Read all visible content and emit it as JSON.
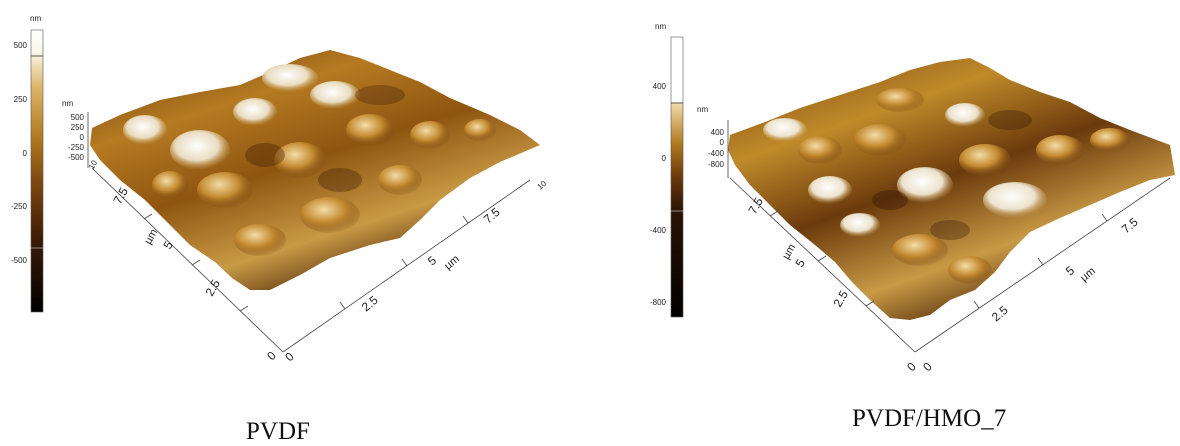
{
  "panels": [
    {
      "caption": "PVDF",
      "colorbar": {
        "unit": "nm",
        "ticks": [
          "500",
          "250",
          "0",
          "-250",
          "-500"
        ]
      },
      "z_axis": {
        "unit": "nm",
        "ticks": [
          "500",
          "250",
          "0",
          "-250",
          "-500"
        ]
      },
      "x_axis": {
        "unit": "µm",
        "ticks": [
          "0",
          "2.5",
          "5",
          "7.5",
          "10"
        ]
      },
      "y_axis": {
        "unit": "µm",
        "ticks": [
          "0",
          "2.5",
          "5",
          "7.5",
          "10"
        ]
      }
    },
    {
      "caption": "PVDF/HMO_7",
      "colorbar": {
        "unit": "nm",
        "ticks": [
          "400",
          "0",
          "-400",
          "-800"
        ]
      },
      "z_axis": {
        "unit": "nm",
        "ticks": [
          "400",
          "0",
          "-400",
          "-800"
        ]
      },
      "x_axis": {
        "unit": "µm",
        "ticks": [
          "0",
          "2.5",
          "5",
          "7.5"
        ]
      },
      "y_axis": {
        "unit": "µm",
        "ticks": [
          "0",
          "2.5",
          "5",
          "7.5"
        ]
      }
    }
  ],
  "colors": {
    "colormap": [
      "#000000",
      "#3a1a06",
      "#6b3a0c",
      "#9a5f15",
      "#c08a2a",
      "#dcb76a",
      "#efe0bf",
      "#ffffff"
    ],
    "axis": "#444444"
  }
}
